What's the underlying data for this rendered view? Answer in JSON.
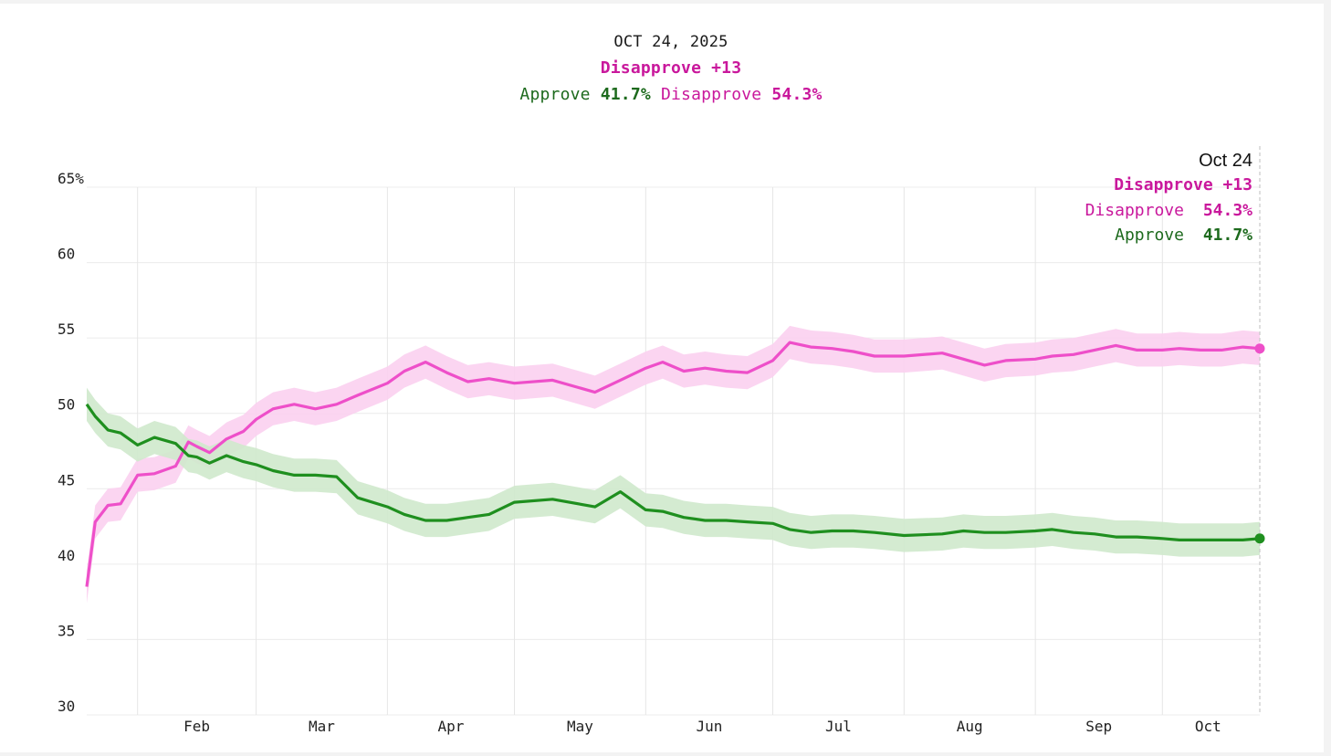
{
  "header": {
    "date": "OCT 24, 2025",
    "net_label": "Disapprove +13",
    "approve_label": "Approve",
    "approve_value": "41.7%",
    "disapprove_label": "Disapprove",
    "disapprove_value": "54.3%"
  },
  "tooltip": {
    "date": "Oct 24",
    "net_label": "Disapprove +13",
    "disapprove_label": "Disapprove",
    "disapprove_value": "54.3%",
    "approve_label": "Approve",
    "approve_value": "41.7%"
  },
  "colors": {
    "approve": "#1f8f1f",
    "approve_band": "#cfe9cc",
    "disapprove": "#ee4fc9",
    "disapprove_band": "#fbd0f0",
    "label_approve": "#1d6a1d",
    "label_disapprove": "#c9189c"
  },
  "chart_data": {
    "type": "line",
    "title": "",
    "xlabel": "",
    "ylabel": "",
    "x_ticks": [
      "Feb",
      "Mar",
      "Apr",
      "May",
      "Jun",
      "Jul",
      "Aug",
      "Sep",
      "Oct"
    ],
    "y_ticks": [
      "65%",
      "60",
      "55",
      "50",
      "45",
      "40",
      "35",
      "30"
    ],
    "ylim": [
      30,
      65
    ],
    "xlim": [
      "2025-01-20",
      "2025-10-24"
    ],
    "grid": true,
    "legend": "none",
    "x": [
      "2025-01-20",
      "2025-01-22",
      "2025-01-25",
      "2025-01-28",
      "2025-02-01",
      "2025-02-05",
      "2025-02-10",
      "2025-02-13",
      "2025-02-15",
      "2025-02-18",
      "2025-02-22",
      "2025-02-26",
      "2025-03-01",
      "2025-03-05",
      "2025-03-10",
      "2025-03-15",
      "2025-03-20",
      "2025-03-25",
      "2025-04-01",
      "2025-04-05",
      "2025-04-10",
      "2025-04-15",
      "2025-04-20",
      "2025-04-25",
      "2025-05-01",
      "2025-05-10",
      "2025-05-20",
      "2025-05-26",
      "2025-06-01",
      "2025-06-05",
      "2025-06-10",
      "2025-06-15",
      "2025-06-20",
      "2025-06-25",
      "2025-07-01",
      "2025-07-05",
      "2025-07-10",
      "2025-07-15",
      "2025-07-20",
      "2025-07-25",
      "2025-08-01",
      "2025-08-10",
      "2025-08-15",
      "2025-08-20",
      "2025-08-25",
      "2025-09-01",
      "2025-09-05",
      "2025-09-10",
      "2025-09-15",
      "2025-09-20",
      "2025-09-25",
      "2025-10-01",
      "2025-10-05",
      "2025-10-10",
      "2025-10-15",
      "2025-10-20",
      "2025-10-24"
    ],
    "series": [
      {
        "name": "Disapprove",
        "values": [
          38.5,
          42.8,
          43.9,
          44.0,
          45.9,
          46.0,
          46.5,
          48.1,
          47.8,
          47.4,
          48.3,
          48.8,
          49.6,
          50.3,
          50.6,
          50.3,
          50.6,
          51.2,
          52.0,
          52.8,
          53.4,
          52.7,
          52.1,
          52.3,
          52.0,
          52.2,
          51.4,
          52.2,
          53.0,
          53.4,
          52.8,
          53.0,
          52.8,
          52.7,
          53.5,
          54.7,
          54.4,
          54.3,
          54.1,
          53.8,
          53.8,
          54.0,
          53.6,
          53.2,
          53.5,
          53.6,
          53.8,
          53.9,
          54.2,
          54.5,
          54.2,
          54.2,
          54.3,
          54.2,
          54.2,
          54.4,
          54.3
        ]
      },
      {
        "name": "Approve",
        "values": [
          50.6,
          49.8,
          48.9,
          48.7,
          47.9,
          48.4,
          48.0,
          47.2,
          47.1,
          46.7,
          47.2,
          46.8,
          46.6,
          46.2,
          45.9,
          45.9,
          45.8,
          44.4,
          43.8,
          43.3,
          42.9,
          42.9,
          43.1,
          43.3,
          44.1,
          44.3,
          43.8,
          44.8,
          43.6,
          43.5,
          43.1,
          42.9,
          42.9,
          42.8,
          42.7,
          42.3,
          42.1,
          42.2,
          42.2,
          42.1,
          41.9,
          42.0,
          42.2,
          42.1,
          42.1,
          42.2,
          42.3,
          42.1,
          42.0,
          41.8,
          41.8,
          41.7,
          41.6,
          41.6,
          41.6,
          41.6,
          41.7
        ]
      }
    ]
  }
}
